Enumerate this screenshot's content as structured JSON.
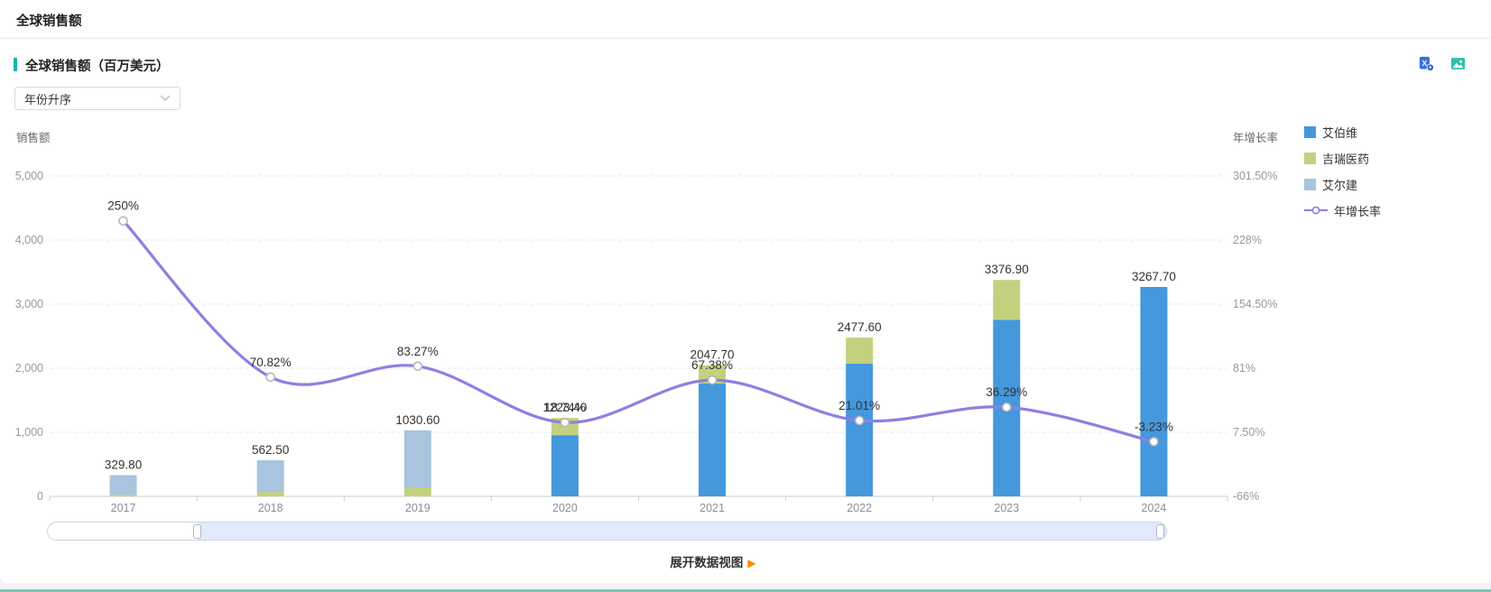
{
  "page": {
    "title": "全球销售额"
  },
  "panel": {
    "title": "全球销售额（百万美元）",
    "accent_color": "#19b5a5",
    "sort_dropdown": {
      "value": "年份升序"
    },
    "toolbar": {
      "icons": [
        {
          "name": "excel-export-icon",
          "color": "#3a6fd8"
        },
        {
          "name": "save-image-icon",
          "color": "#2ebfab"
        }
      ]
    }
  },
  "chart_data": {
    "type": "bar",
    "subtype": "stacked-bars-with-growth-line",
    "title": "全球销售额（百万美元）",
    "categories": [
      "2017",
      "2018",
      "2019",
      "2020",
      "2021",
      "2022",
      "2023",
      "2024"
    ],
    "left_axis": {
      "title": "销售额",
      "min": 0,
      "max": 5000,
      "ticks": [
        "0",
        "1,000",
        "2,000",
        "3,000",
        "4,000",
        "5,000"
      ],
      "grid": "dashed"
    },
    "right_axis": {
      "title": "年增长率",
      "min": -66,
      "max": 301.5,
      "ticks": [
        "-66%",
        "7.50%",
        "81%",
        "154.50%",
        "228%",
        "301.50%"
      ]
    },
    "series": [
      {
        "name": "艾伯维",
        "type": "bar",
        "stack": true,
        "color": "#4498db",
        "values": [
          0,
          0,
          0,
          955,
          1760,
          2070,
          2757,
          3267.7
        ]
      },
      {
        "name": "吉瑞医药",
        "type": "bar",
        "stack": true,
        "color": "#c3d17f",
        "values": [
          25,
          70,
          140,
          268.4,
          287.7,
          407.6,
          619.9,
          0
        ]
      },
      {
        "name": "艾尔建",
        "type": "bar",
        "stack": true,
        "color": "#a8c4de",
        "values": [
          304.8,
          492.5,
          890.6,
          0,
          0,
          0,
          0,
          0
        ]
      },
      {
        "name": "年增长率",
        "type": "line",
        "color": "#8e7fe3",
        "marker": "hollow-circle",
        "values": [
          250,
          70.82,
          83.27,
          18.74,
          67.38,
          21.01,
          36.29,
          -3.23
        ]
      }
    ],
    "bar_total_labels": [
      "329.80",
      "562.50",
      "1030.60",
      "1223.40",
      "2047.70",
      "2477.60",
      "3376.90",
      "3267.70"
    ],
    "line_labels": [
      "250%",
      "70.82%",
      "83.27%",
      "18.74%",
      "67.38%",
      "21.01%",
      "36.29%",
      "-3.23%"
    ],
    "legend_position": "right",
    "legend_entries": [
      "艾伯维",
      "吉瑞医药",
      "艾尔建",
      "年增长率"
    ]
  },
  "footer": {
    "expand_label": "展开数据视图",
    "arrow": "▶",
    "arrow_color": "#ff8a00"
  }
}
